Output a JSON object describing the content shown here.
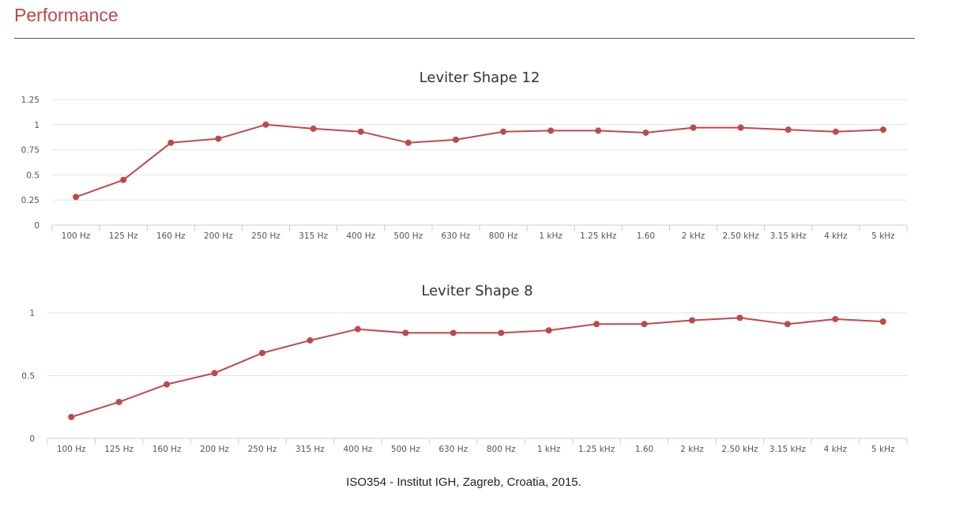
{
  "page": {
    "section_title": "Performance",
    "footer": "ISO354 - Institut IGH, Zagreb, Croatia, 2015."
  },
  "colors": {
    "accent": "#c0484b",
    "series": "#c0484b",
    "grid": "#e3e3e3",
    "axis": "#c0d0e0",
    "tick_label": "#555555",
    "title": "#333333"
  },
  "chart_data": [
    {
      "type": "line",
      "title": "Leviter Shape 12",
      "xlabel": "",
      "ylabel": "",
      "categories": [
        "100 Hz",
        "125 Hz",
        "160 Hz",
        "200 Hz",
        "250 Hz",
        "315 Hz",
        "400 Hz",
        "500 Hz",
        "630 Hz",
        "800 Hz",
        "1 kHz",
        "1.25 kHz",
        "1.60",
        "2 kHz",
        "2.50 kHz",
        "3.15 kHz",
        "4 kHz",
        "5 kHz"
      ],
      "ylim": [
        0,
        1.25
      ],
      "yticks": [
        0,
        0.25,
        0.5,
        0.75,
        1,
        1.25
      ],
      "ytick_labels": [
        "0",
        "0.25",
        "0.5",
        "0.75",
        "1",
        "1.25"
      ],
      "grid": true,
      "legend": "none",
      "series": [
        {
          "values": [
            0.28,
            0.45,
            0.82,
            0.86,
            1.0,
            0.96,
            0.93,
            0.82,
            0.85,
            0.93,
            0.94,
            0.94,
            0.92,
            0.97,
            0.97,
            0.95,
            0.93,
            0.95
          ]
        }
      ]
    },
    {
      "type": "line",
      "title": "Leviter Shape 8",
      "xlabel": "",
      "ylabel": "",
      "categories": [
        "100 Hz",
        "125 Hz",
        "160 Hz",
        "200 Hz",
        "250 Hz",
        "315 Hz",
        "400 Hz",
        "500 Hz",
        "630 Hz",
        "800 Hz",
        "1 kHz",
        "1.25 kHz",
        "1.60",
        "2 kHz",
        "2.50 kHz",
        "3.15 kHz",
        "4 kHz",
        "5 kHz"
      ],
      "ylim": [
        0,
        1
      ],
      "yticks": [
        0,
        0.5,
        1
      ],
      "ytick_labels": [
        "0",
        "0.5",
        "1"
      ],
      "grid": true,
      "legend": "none",
      "series": [
        {
          "values": [
            0.17,
            0.29,
            0.43,
            0.52,
            0.68,
            0.78,
            0.87,
            0.84,
            0.84,
            0.84,
            0.86,
            0.91,
            0.91,
            0.94,
            0.96,
            0.91,
            0.95,
            0.93
          ]
        }
      ]
    }
  ]
}
